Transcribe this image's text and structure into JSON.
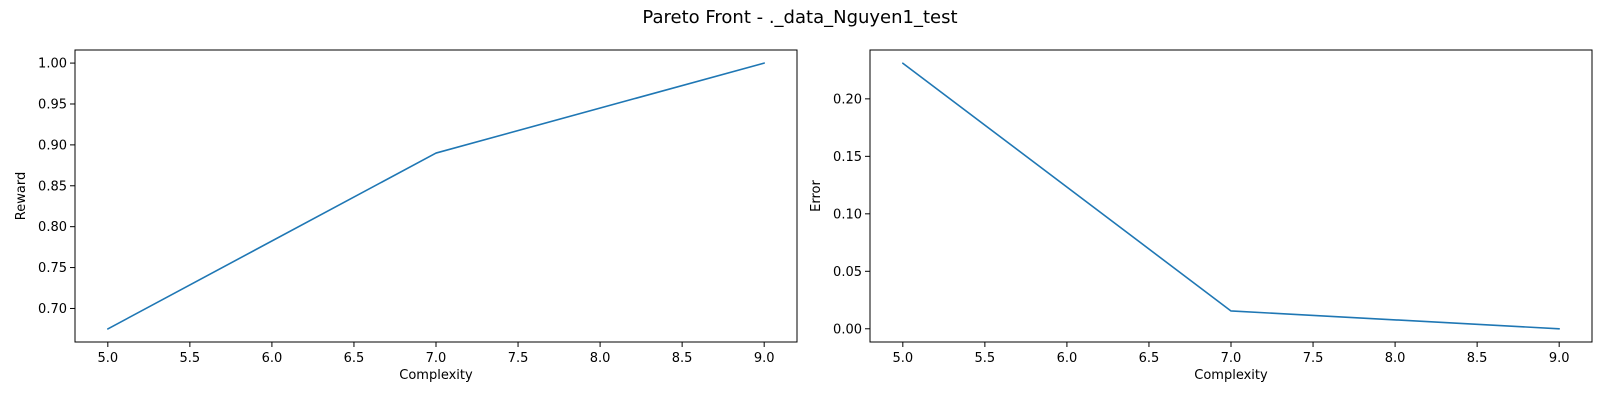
{
  "figure": {
    "title": "Pareto Front - ._data_Nguyen1_test",
    "colors": {
      "series": "#1f77b4",
      "axes": "#000000",
      "background": "#ffffff"
    }
  },
  "chart_data": [
    {
      "type": "line",
      "xlabel": "Complexity",
      "ylabel": "Reward",
      "xlim": [
        4.8,
        9.2
      ],
      "ylim": [
        0.659,
        1.016
      ],
      "xticks": [
        5.0,
        5.5,
        6.0,
        6.5,
        7.0,
        7.5,
        8.0,
        8.5,
        9.0
      ],
      "xtick_labels": [
        "5.0",
        "5.5",
        "6.0",
        "6.5",
        "7.0",
        "7.5",
        "8.0",
        "8.5",
        "9.0"
      ],
      "yticks": [
        0.7,
        0.75,
        0.8,
        0.85,
        0.9,
        0.95,
        1.0
      ],
      "ytick_labels": [
        "0.70",
        "0.75",
        "0.80",
        "0.85",
        "0.90",
        "0.95",
        "1.00"
      ],
      "grid": false,
      "series": [
        {
          "x": [
            5,
            7,
            9
          ],
          "y": [
            0.675,
            0.89,
            1.0
          ]
        }
      ]
    },
    {
      "type": "line",
      "xlabel": "Complexity",
      "ylabel": "Error",
      "xlim": [
        4.8,
        9.2
      ],
      "ylim": [
        -0.0115,
        0.2425
      ],
      "xticks": [
        5.0,
        5.5,
        6.0,
        6.5,
        7.0,
        7.5,
        8.0,
        8.5,
        9.0
      ],
      "xtick_labels": [
        "5.0",
        "5.5",
        "6.0",
        "6.5",
        "7.0",
        "7.5",
        "8.0",
        "8.5",
        "9.0"
      ],
      "yticks": [
        0.0,
        0.05,
        0.1,
        0.15,
        0.2
      ],
      "ytick_labels": [
        "0.00",
        "0.05",
        "0.10",
        "0.15",
        "0.20"
      ],
      "grid": false,
      "series": [
        {
          "x": [
            5,
            7,
            9
          ],
          "y": [
            0.231,
            0.0155,
            0.0
          ]
        }
      ]
    }
  ]
}
